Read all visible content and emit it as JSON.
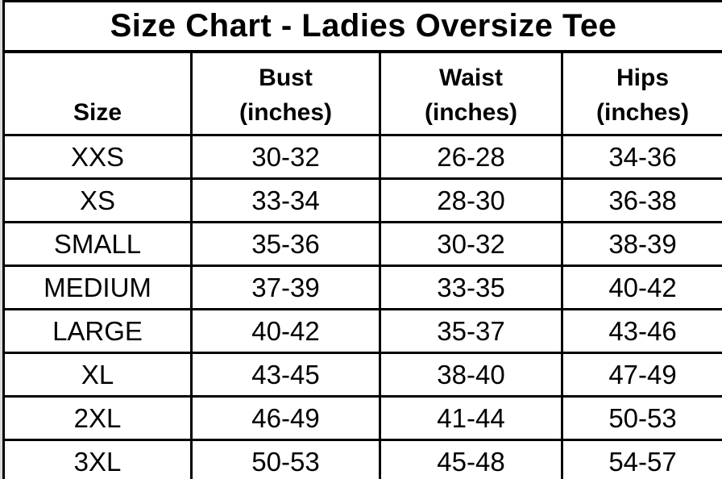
{
  "chart_data": {
    "type": "table",
    "title": "Size Chart - Ladies Oversize Tee",
    "columns": [
      {
        "label": "Size",
        "sub": ""
      },
      {
        "label": "Bust",
        "sub": "(inches)"
      },
      {
        "label": "Waist",
        "sub": "(inches)"
      },
      {
        "label": "Hips",
        "sub": "(inches)"
      }
    ],
    "rows": [
      [
        "XXS",
        "30-32",
        "26-28",
        "34-36"
      ],
      [
        "XS",
        "33-34",
        "28-30",
        "36-38"
      ],
      [
        "SMALL",
        "35-36",
        "30-32",
        "38-39"
      ],
      [
        "MEDIUM",
        "37-39",
        "33-35",
        "40-42"
      ],
      [
        "LARGE",
        "40-42",
        "35-37",
        "43-46"
      ],
      [
        "XL",
        "43-45",
        "38-40",
        "47-49"
      ],
      [
        "2XL",
        "46-49",
        "41-44",
        "50-53"
      ],
      [
        "3XL",
        "50-53",
        "45-48",
        "54-57"
      ]
    ],
    "colors": {
      "text": "#000000",
      "border": "#000000",
      "background": "#ffffff",
      "page_edge": "#dcdcdc"
    }
  }
}
